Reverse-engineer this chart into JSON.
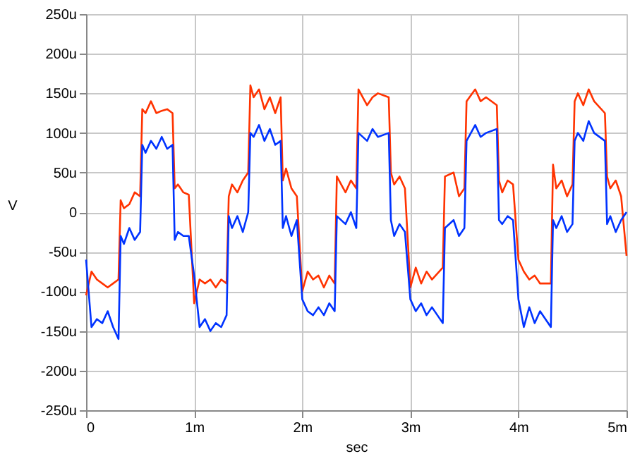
{
  "chart_data": {
    "type": "line",
    "xlabel": "sec",
    "ylabel": "V",
    "x": [
      0,
      0.05,
      0.1,
      0.15,
      0.2,
      0.25,
      0.3,
      0.32,
      0.35,
      0.4,
      0.45,
      0.5,
      0.52,
      0.55,
      0.6,
      0.65,
      0.7,
      0.75,
      0.8,
      0.82,
      0.85,
      0.9,
      0.95,
      1.0,
      1.05,
      1.1,
      1.15,
      1.2,
      1.25,
      1.3,
      1.32,
      1.35,
      1.4,
      1.45,
      1.5,
      1.52,
      1.55,
      1.6,
      1.65,
      1.7,
      1.75,
      1.8,
      1.82,
      1.85,
      1.9,
      1.95,
      2.0,
      2.05,
      2.1,
      2.15,
      2.2,
      2.25,
      2.3,
      2.32,
      2.4,
      2.45,
      2.5,
      2.52,
      2.6,
      2.65,
      2.7,
      2.8,
      2.82,
      2.85,
      2.9,
      2.95,
      3.0,
      3.05,
      3.1,
      3.15,
      3.2,
      3.3,
      3.32,
      3.4,
      3.45,
      3.5,
      3.52,
      3.6,
      3.65,
      3.7,
      3.8,
      3.82,
      3.85,
      3.9,
      3.95,
      4.0,
      4.05,
      4.1,
      4.15,
      4.2,
      4.3,
      4.32,
      4.35,
      4.4,
      4.45,
      4.5,
      4.52,
      4.55,
      4.6,
      4.65,
      4.7,
      4.8,
      4.82,
      4.85,
      4.9,
      4.95,
      5.0
    ],
    "series": [
      {
        "color": "#ff3300",
        "values": [
          -105,
          -75,
          -85,
          -90,
          -95,
          -90,
          -85,
          15,
          5,
          10,
          25,
          20,
          130,
          125,
          140,
          125,
          128,
          130,
          125,
          30,
          35,
          25,
          22,
          -115,
          -85,
          -90,
          -85,
          -95,
          -85,
          -90,
          20,
          35,
          25,
          40,
          50,
          160,
          145,
          155,
          130,
          145,
          125,
          145,
          40,
          55,
          30,
          20,
          -100,
          -75,
          -85,
          -80,
          -95,
          -80,
          -90,
          45,
          25,
          40,
          30,
          155,
          135,
          145,
          150,
          145,
          50,
          35,
          45,
          30,
          -95,
          -70,
          -90,
          -75,
          -85,
          -70,
          45,
          50,
          20,
          30,
          140,
          155,
          140,
          145,
          135,
          40,
          25,
          40,
          35,
          -60,
          -75,
          -85,
          -80,
          -90,
          -90,
          60,
          30,
          40,
          20,
          35,
          140,
          150,
          135,
          155,
          140,
          125,
          45,
          30,
          40,
          20,
          -55
        ]
      },
      {
        "color": "#0033ff",
        "values": [
          -60,
          -145,
          -135,
          -140,
          -125,
          -145,
          -160,
          -30,
          -40,
          -20,
          -35,
          -25,
          85,
          75,
          90,
          80,
          95,
          80,
          85,
          -35,
          -25,
          -30,
          -30,
          -80,
          -145,
          -135,
          -150,
          -140,
          -145,
          -130,
          -5,
          -20,
          -5,
          -25,
          0,
          100,
          95,
          110,
          90,
          105,
          85,
          90,
          -20,
          -5,
          -30,
          -10,
          -110,
          -125,
          -130,
          -120,
          -130,
          -115,
          -125,
          -5,
          -15,
          0,
          -20,
          100,
          90,
          105,
          95,
          100,
          -10,
          -30,
          -15,
          -25,
          -110,
          -125,
          -115,
          -130,
          -120,
          -140,
          -20,
          -10,
          -30,
          -20,
          90,
          110,
          95,
          100,
          105,
          -10,
          -15,
          -5,
          -10,
          -110,
          -145,
          -120,
          -140,
          -125,
          -145,
          -10,
          -20,
          -5,
          -25,
          -15,
          90,
          100,
          90,
          115,
          100,
          90,
          -15,
          -5,
          -25,
          -10,
          0
        ]
      }
    ],
    "xlim": [
      0,
      5
    ],
    "xticks": [
      0,
      {
        "value": 1,
        "label": "1m"
      },
      {
        "value": 2,
        "label": "2m"
      },
      {
        "value": 3,
        "label": "3m"
      },
      {
        "value": 4,
        "label": "4m"
      },
      {
        "value": 5,
        "label": "5m"
      }
    ],
    "ylim": [
      -250,
      250
    ],
    "yticks": [
      {
        "value": -250,
        "label": "-250u"
      },
      {
        "value": -200,
        "label": "-200u"
      },
      {
        "value": -150,
        "label": "-150u"
      },
      {
        "value": -100,
        "label": "-100u"
      },
      {
        "value": -50,
        "label": "-50u"
      },
      0,
      {
        "value": 50,
        "label": "50u"
      },
      {
        "value": 100,
        "label": "100u"
      },
      {
        "value": 150,
        "label": "150u"
      },
      {
        "value": 200,
        "label": "200u"
      },
      {
        "value": 250,
        "label": "250u"
      }
    ],
    "grid": true,
    "marker": "none",
    "line_style": "solid",
    "legend": false
  }
}
